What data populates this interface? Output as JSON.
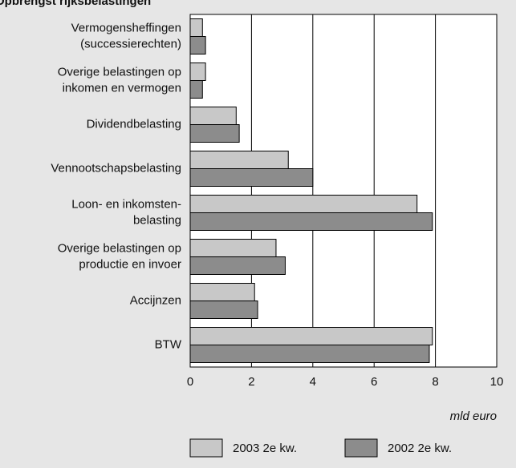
{
  "chart_data": {
    "type": "hbar",
    "title": "Opbrengst rijksbelastingen",
    "categories": [
      [
        "Vermogensheffingen",
        "(successierechten)"
      ],
      [
        "Overige belastingen op",
        "inkomen en vermogen"
      ],
      [
        "Dividendbelasting"
      ],
      [
        "Vennootschapsbelasting"
      ],
      [
        "Loon- en inkomsten-",
        "belasting"
      ],
      [
        "Overige belastingen op",
        "productie en invoer"
      ],
      [
        "Accijnzen"
      ],
      [
        "BTW"
      ]
    ],
    "series": [
      {
        "name": "2003 2e kw.",
        "color": "#c8c8c8",
        "values": [
          0.4,
          0.5,
          1.5,
          3.2,
          7.4,
          2.8,
          2.1,
          7.9
        ]
      },
      {
        "name": "2002 2e kw.",
        "color": "#8c8c8c",
        "values": [
          0.5,
          0.4,
          1.6,
          4.0,
          7.9,
          3.1,
          2.2,
          7.8
        ]
      }
    ],
    "xlabel": "mld euro",
    "xlim": [
      0,
      10
    ],
    "xticks": [
      0,
      2,
      4,
      6,
      8,
      10
    ],
    "grid": true
  }
}
